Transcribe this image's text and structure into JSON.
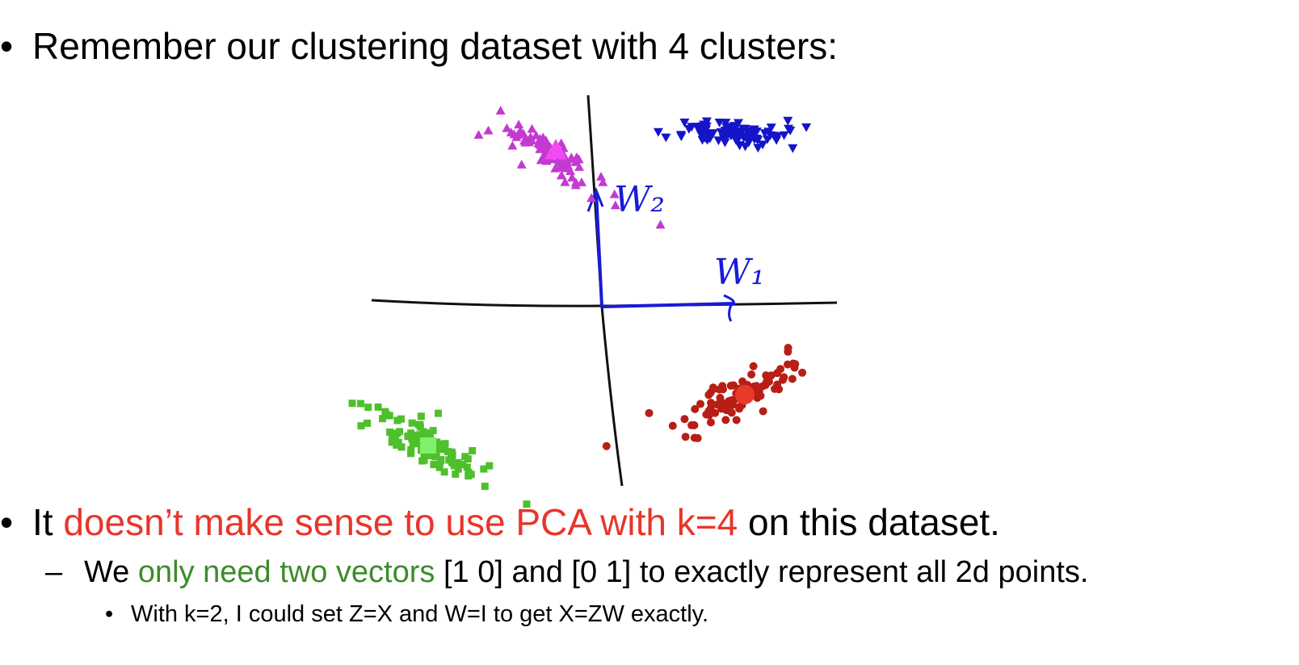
{
  "bullets": {
    "b1": {
      "marker": "•",
      "text": "Remember our clustering dataset with 4 clusters:"
    },
    "b2": {
      "marker": "•",
      "pre": "It ",
      "highlight": "doesn’t make sense to use PCA with k=4",
      "post": " on this dataset."
    },
    "b2_sub": {
      "marker": "–",
      "pre": "We ",
      "highlight": "only need two vectors",
      "post": " [1 0] and [0 1] to exactly represent all 2d points."
    },
    "b2_sub_sub": {
      "marker": "•",
      "text": "With k=2, I could set Z=X and W=I to get X=ZW exactly."
    }
  },
  "figure": {
    "annotations": {
      "w1": "W₁",
      "w2": "W₂"
    },
    "colors": {
      "magenta": "#c23ad0",
      "magenta_center": "#f24af2",
      "blue": "#1414c8",
      "red": "#b81e16",
      "red_center": "#e83a2a",
      "green": "#4fbf2c",
      "green_center": "#7ef06a",
      "ink": "#1a1ad8",
      "axis": "#111111"
    },
    "clusters": [
      {
        "name": "magenta-cluster",
        "marker": "triangle-up",
        "color": "magenta"
      },
      {
        "name": "blue-cluster",
        "marker": "triangle-down",
        "color": "blue"
      },
      {
        "name": "red-cluster",
        "marker": "circle",
        "color": "red"
      },
      {
        "name": "green-cluster",
        "marker": "square",
        "color": "green"
      }
    ]
  }
}
